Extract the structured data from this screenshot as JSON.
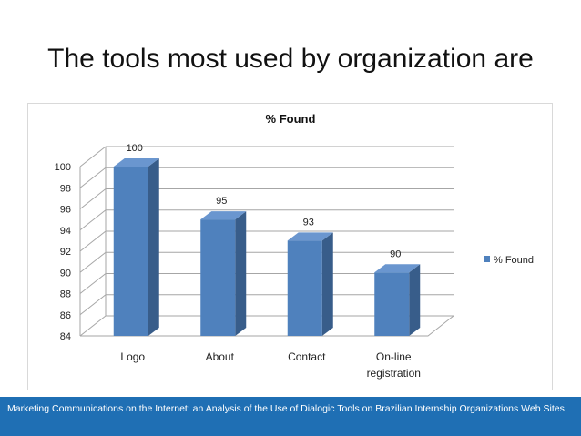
{
  "slide": {
    "title": "The tools most used by organization are",
    "footer": "Marketing Communications on the Internet: an Analysis of the Use of Dialogic Tools on Brazilian Internship Organizations Web Sites"
  },
  "colors": {
    "bar_front": "#4f81bd",
    "bar_side": "#385d8a",
    "bar_top": "#6a96cf",
    "footer_bg": "#1f6fb4"
  },
  "chart_data": {
    "type": "bar",
    "title": "% Found",
    "categories": [
      "Logo",
      "About",
      "Contact",
      "On-line registration"
    ],
    "series": [
      {
        "name": "% Found",
        "values": [
          100,
          95,
          93,
          90
        ]
      }
    ],
    "ylim": [
      84,
      100
    ],
    "yticks": [
      84,
      86,
      88,
      90,
      92,
      94,
      96,
      98,
      100
    ],
    "grid": true,
    "legend": "right",
    "style": "3d-column"
  }
}
